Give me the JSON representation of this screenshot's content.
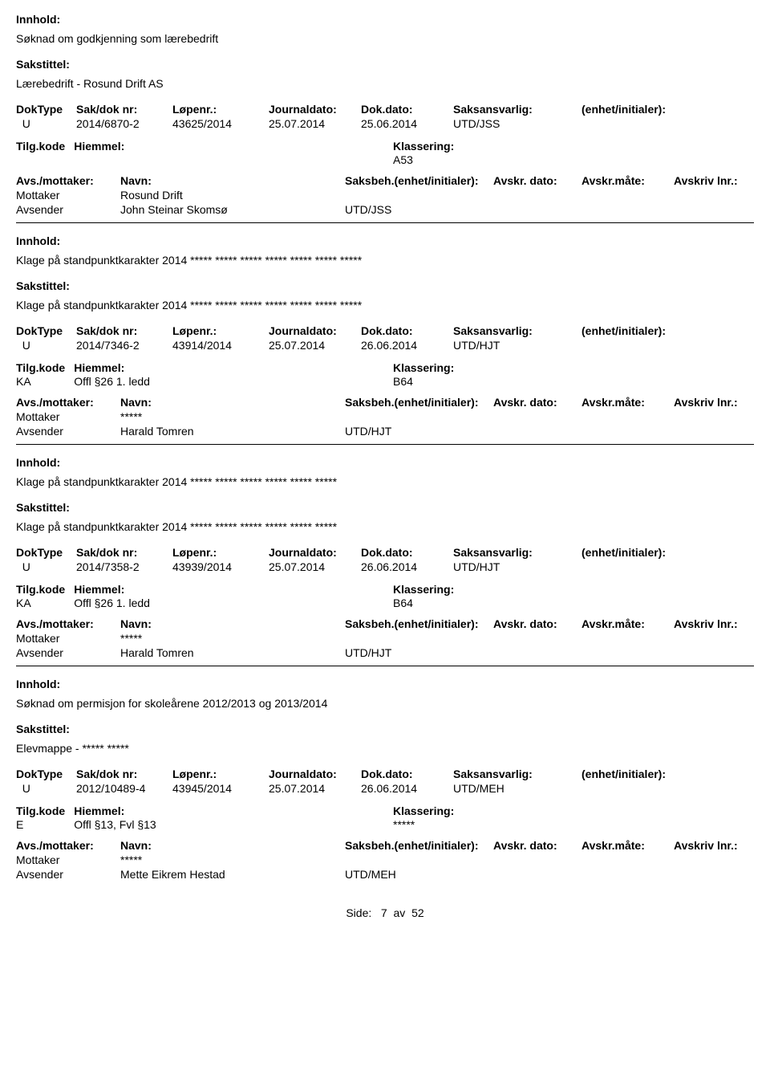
{
  "labels": {
    "innhold": "Innhold:",
    "sakstittel": "Sakstittel:",
    "doktype": "DokType",
    "sakdok": "Sak/dok nr:",
    "lopenr": "Løpenr.:",
    "journaldato": "Journaldato:",
    "dokdato": "Dok.dato:",
    "saksansvarlig": "Saksansvarlig:",
    "enhet": "(enhet/initialer):",
    "tilgkode": "Tilg.kode",
    "hjemmel": "Hiemmel:",
    "klassering": "Klassering:",
    "avsmottaker": "Avs./mottaker:",
    "navn": "Navn:",
    "saksbeh": "Saksbeh.(enhet/initialer):",
    "avskrdato": "Avskr. dato:",
    "avskrmate": "Avskr.måte:",
    "avskrlnr": "Avskriv lnr.:",
    "mottaker": "Mottaker",
    "avsender": "Avsender"
  },
  "records": [
    {
      "innhold": "Søknad om godkjenning som lærebedrift",
      "sakstittel": "Lærebedrift - Rosund Drift AS",
      "doktype": "U",
      "sakdok": "2014/6870-2",
      "lopenr": "43625/2014",
      "journaldato": "25.07.2014",
      "dokdato": "25.06.2014",
      "saksansvarlig": "UTD/JSS",
      "tilgkode": "",
      "hjemmel": "",
      "klassering": "A53",
      "mottaker": "Rosund Drift",
      "avsender": "John Steinar Skomsø",
      "saksbeh_unit": "UTD/JSS"
    },
    {
      "innhold": "Klage på standpunktkarakter 2014 ***** ***** ***** ***** ***** ***** *****",
      "sakstittel": "Klage på standpunktkarakter 2014 ***** ***** ***** ***** ***** ***** *****",
      "doktype": "U",
      "sakdok": "2014/7346-2",
      "lopenr": "43914/2014",
      "journaldato": "25.07.2014",
      "dokdato": "26.06.2014",
      "saksansvarlig": "UTD/HJT",
      "tilgkode": "KA",
      "hjemmel": "Offl §26 1. ledd",
      "klassering": "B64",
      "mottaker": "*****",
      "avsender": "Harald Tomren",
      "saksbeh_unit": "UTD/HJT"
    },
    {
      "innhold": "Klage på standpunktkarakter 2014 ***** ***** ***** ***** ***** *****",
      "sakstittel": "Klage på standpunktkarakter 2014 ***** ***** ***** ***** ***** *****",
      "doktype": "U",
      "sakdok": "2014/7358-2",
      "lopenr": "43939/2014",
      "journaldato": "25.07.2014",
      "dokdato": "26.06.2014",
      "saksansvarlig": "UTD/HJT",
      "tilgkode": "KA",
      "hjemmel": "Offl §26 1. ledd",
      "klassering": "B64",
      "mottaker": "*****",
      "avsender": "Harald Tomren",
      "saksbeh_unit": "UTD/HJT"
    },
    {
      "innhold": "Søknad om permisjon for skoleårene 2012/2013 og 2013/2014",
      "sakstittel": "Elevmappe - ***** *****",
      "doktype": "U",
      "sakdok": "2012/10489-4",
      "lopenr": "43945/2014",
      "journaldato": "25.07.2014",
      "dokdato": "26.06.2014",
      "saksansvarlig": "UTD/MEH",
      "tilgkode": "E",
      "hjemmel": "Offl §13, Fvl §13",
      "klassering": "*****",
      "mottaker": "*****",
      "avsender": "Mette Eikrem Hestad",
      "saksbeh_unit": "UTD/MEH"
    }
  ],
  "footer": {
    "side": "Side:",
    "page": "7",
    "av": "av",
    "total": "52"
  }
}
